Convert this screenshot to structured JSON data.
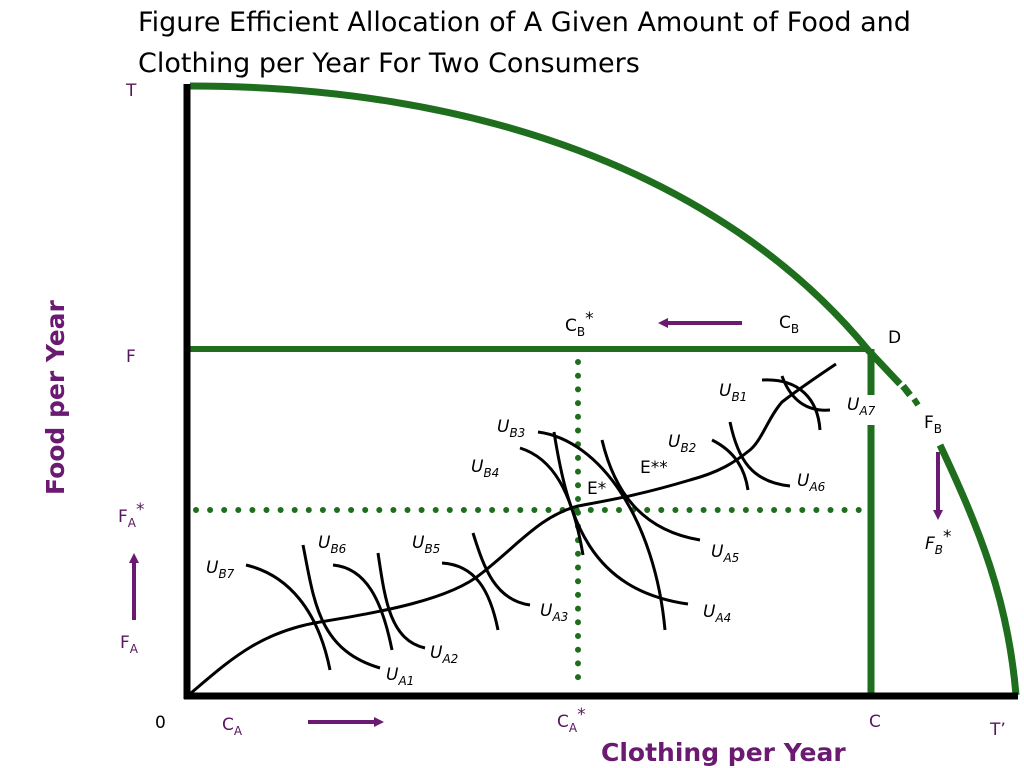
{
  "title": {
    "line1": "Figure Efficient Allocation of A Given Amount of Food and",
    "line2": "Clothing per Year For Two Consumers"
  },
  "axes": {
    "x_title": "Clothing per Year",
    "y_title": "Food per Year"
  },
  "points": {
    "T": "T",
    "F": "F",
    "origin": "0",
    "C": "C",
    "T_prime": "T’",
    "D": "D",
    "E_star": "E*",
    "E_double_star": "E**"
  },
  "quantities": {
    "CA": {
      "main": "C",
      "sub": "A",
      "sup": ""
    },
    "CA_star": {
      "main": "C",
      "sub": "A",
      "sup": "*"
    },
    "CB": {
      "main": "C",
      "sub": "B",
      "sup": ""
    },
    "CB_star": {
      "main": "C",
      "sub": "B",
      "sup": "*"
    },
    "FA": {
      "main": "F",
      "sub": "A",
      "sup": ""
    },
    "FA_star": {
      "main": "F",
      "sub": "A",
      "sup": "*"
    },
    "FB": {
      "main": "F",
      "sub": "B",
      "sup": ""
    },
    "FB_star": {
      "main": "F",
      "sub": "B",
      "sup": "*"
    }
  },
  "curves": {
    "UA1": {
      "main": "U",
      "sub": "A1"
    },
    "UA2": {
      "main": "U",
      "sub": "A2"
    },
    "UA3": {
      "main": "U",
      "sub": "A3"
    },
    "UA4": {
      "main": "U",
      "sub": "A4"
    },
    "UA5": {
      "main": "U",
      "sub": "A5"
    },
    "UA6": {
      "main": "U",
      "sub": "A6"
    },
    "UA7": {
      "main": "U",
      "sub": "A7"
    },
    "UB1": {
      "main": "U",
      "sub": "B1"
    },
    "UB2": {
      "main": "U",
      "sub": "B2"
    },
    "UB3": {
      "main": "U",
      "sub": "B3"
    },
    "UB4": {
      "main": "U",
      "sub": "B4"
    },
    "UB5": {
      "main": "U",
      "sub": "B5"
    },
    "UB6": {
      "main": "U",
      "sub": "B6"
    },
    "UB7": {
      "main": "U",
      "sub": "B7"
    }
  },
  "colors": {
    "frontier": "#1e6e1e",
    "axis": "#000000",
    "label": "#5a1560",
    "arrow": "#6a1a70",
    "curve": "#000000"
  }
}
